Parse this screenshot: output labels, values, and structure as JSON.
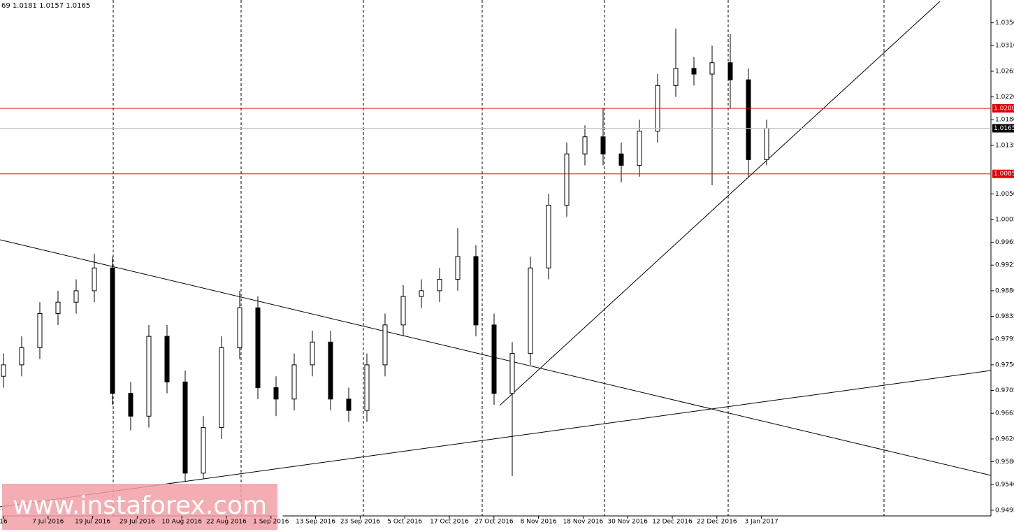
{
  "chart_data": {
    "type": "candlestick",
    "header": "69 1.0181 1.0157 1.0165",
    "watermark": "[ www.instaforex.com ]",
    "dates": [
      "16",
      "7 Jul 2016",
      "19 Jul 2016",
      "29 Jul 2016",
      "10 Aug 2016",
      "22 Aug 2016",
      "1 Sep 2016",
      "13 Sep 2016",
      "23 Sep 2016",
      "5 Oct 2016",
      "17 Oct 2016",
      "27 Oct 2016",
      "8 Nov 2016",
      "18 Nov 2016",
      "30 Nov 2016",
      "12 Dec 2016",
      "22 Dec 2016",
      "3 Jan 2017"
    ],
    "open": [
      0.973,
      0.975,
      0.978,
      0.984,
      0.986,
      0.988,
      0.992,
      0.97,
      0.966,
      0.98,
      0.972,
      0.956,
      0.964,
      0.978,
      0.985,
      0.971,
      0.969,
      0.975,
      0.979,
      0.969,
      0.967,
      0.975,
      0.982,
      0.987,
      0.988,
      0.99,
      0.994,
      0.982,
      0.97,
      0.977,
      0.992,
      1.003,
      1.012,
      1.015,
      1.012,
      1.01,
      1.016,
      1.024,
      1.027,
      1.026,
      1.028,
      1.025,
      1.011
    ],
    "high": [
      0.977,
      0.98,
      0.986,
      0.988,
      0.99,
      0.9945,
      0.994,
      0.972,
      0.982,
      0.982,
      0.974,
      0.966,
      0.98,
      0.988,
      0.987,
      0.973,
      0.977,
      0.981,
      0.981,
      0.971,
      0.977,
      0.984,
      0.989,
      0.99,
      0.992,
      0.999,
      0.996,
      0.984,
      0.979,
      0.994,
      1.005,
      1.014,
      1.017,
      1.02,
      1.014,
      1.018,
      1.026,
      1.034,
      1.029,
      1.031,
      1.033,
      1.027,
      1.018
    ],
    "low": [
      0.971,
      0.973,
      0.976,
      0.982,
      0.984,
      0.986,
      0.968,
      0.9635,
      0.964,
      0.97,
      0.9545,
      0.955,
      0.962,
      0.976,
      0.969,
      0.966,
      0.967,
      0.973,
      0.967,
      0.965,
      0.965,
      0.973,
      0.98,
      0.985,
      0.986,
      0.988,
      0.98,
      0.968,
      0.9555,
      0.975,
      0.99,
      1.001,
      1.01,
      1.01,
      1.007,
      1.008,
      1.014,
      1.022,
      1.024,
      1.0065,
      1.02,
      1.008,
      1.01
    ],
    "close": [
      0.975,
      0.978,
      0.984,
      0.986,
      0.988,
      0.992,
      0.97,
      0.966,
      0.98,
      0.972,
      0.956,
      0.964,
      0.978,
      0.985,
      0.971,
      0.969,
      0.975,
      0.979,
      0.969,
      0.967,
      0.975,
      0.982,
      0.987,
      0.988,
      0.99,
      0.994,
      0.982,
      0.97,
      0.977,
      0.992,
      1.003,
      1.012,
      1.015,
      1.012,
      1.01,
      1.016,
      1.024,
      1.027,
      1.026,
      1.028,
      1.025,
      1.011,
      1.0165
    ],
    "ylim": [
      0.9485,
      1.039
    ],
    "yticks": [
      {
        "value": 1.035,
        "label": "1.0350"
      },
      {
        "value": 1.031,
        "label": "1.0310"
      },
      {
        "value": 1.0265,
        "label": "1.0265"
      },
      {
        "value": 1.022,
        "label": "1.0220"
      },
      {
        "value": 1.018,
        "label": "1.0180"
      },
      {
        "value": 1.0135,
        "label": "1.0135"
      },
      {
        "value": 1.005,
        "label": "1.0050"
      },
      {
        "value": 1.0005,
        "label": "1.0005"
      },
      {
        "value": 0.9965,
        "label": "0.9965"
      },
      {
        "value": 0.9925,
        "label": "0.9925"
      },
      {
        "value": 0.988,
        "label": "0.9880"
      },
      {
        "value": 0.9835,
        "label": "0.9835"
      },
      {
        "value": 0.9795,
        "label": "0.9795"
      },
      {
        "value": 0.975,
        "label": "0.9750"
      },
      {
        "value": 0.9705,
        "label": "0.9705"
      },
      {
        "value": 0.9665,
        "label": "0.9665"
      },
      {
        "value": 0.962,
        "label": "0.9620"
      },
      {
        "value": 0.958,
        "label": "0.9580"
      },
      {
        "value": 0.954,
        "label": "0.9540"
      },
      {
        "value": 0.9495,
        "label": "0.9495"
      }
    ],
    "levels": [
      {
        "value": 1.02,
        "label": "1.0200"
      },
      {
        "value": 1.0085,
        "label": "1.0085"
      }
    ],
    "level_color": "#e00000",
    "current": {
      "value": 1.0165,
      "label": "1.0165"
    },
    "bull_color": "#ffffff",
    "bear_color": "#000000"
  }
}
